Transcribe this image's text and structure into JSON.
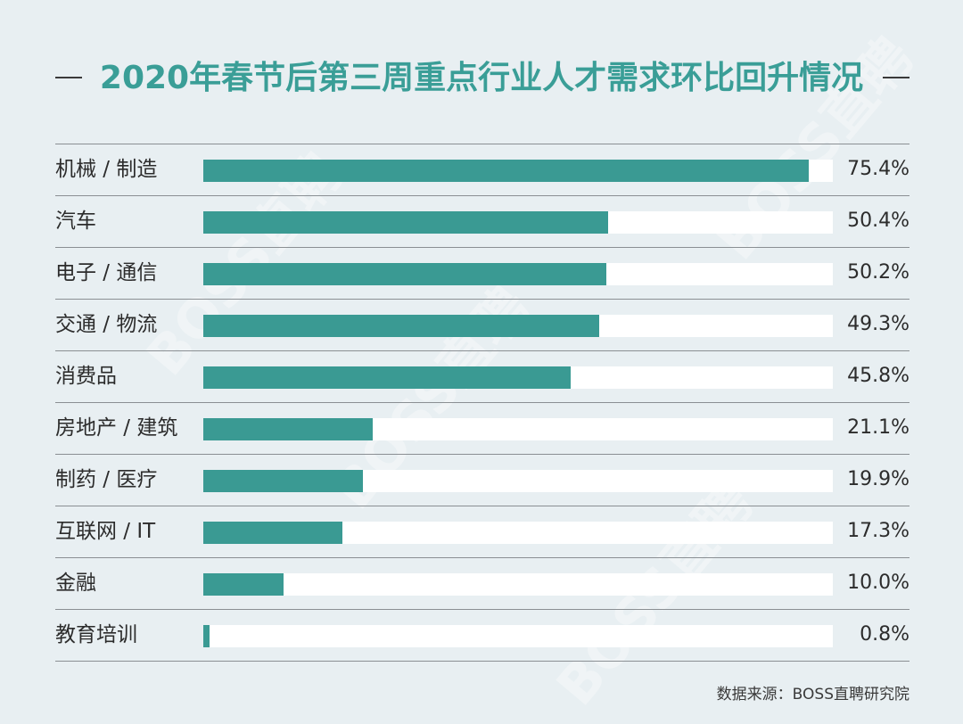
{
  "chart_data": {
    "type": "bar",
    "orientation": "horizontal",
    "title": "2020年春节后第三周重点行业人才需求环比回升情况",
    "categories": [
      "机械 / 制造",
      "汽车",
      "电子 / 通信",
      "交通 / 物流",
      "消费品",
      "房地产 / 建筑",
      "制药 / 医疗",
      "互联网 / IT",
      "金融",
      "教育培训"
    ],
    "values": [
      75.4,
      50.4,
      50.2,
      49.3,
      45.8,
      21.1,
      19.9,
      17.3,
      10.0,
      0.8
    ],
    "value_labels": [
      "75.4%",
      "50.4%",
      "50.2%",
      "49.3%",
      "45.8%",
      "21.1%",
      "19.9%",
      "17.3%",
      "10.0%",
      "0.8%"
    ],
    "xlim": [
      0,
      78.4
    ],
    "grid": false,
    "colors": {
      "bar": "#3a9a93",
      "track": "#ffffff",
      "title": "#3a9e97",
      "background": "#e8eff2"
    }
  },
  "source": "数据来源：BOSS直聘研究院",
  "watermark": "BOSS直聘"
}
